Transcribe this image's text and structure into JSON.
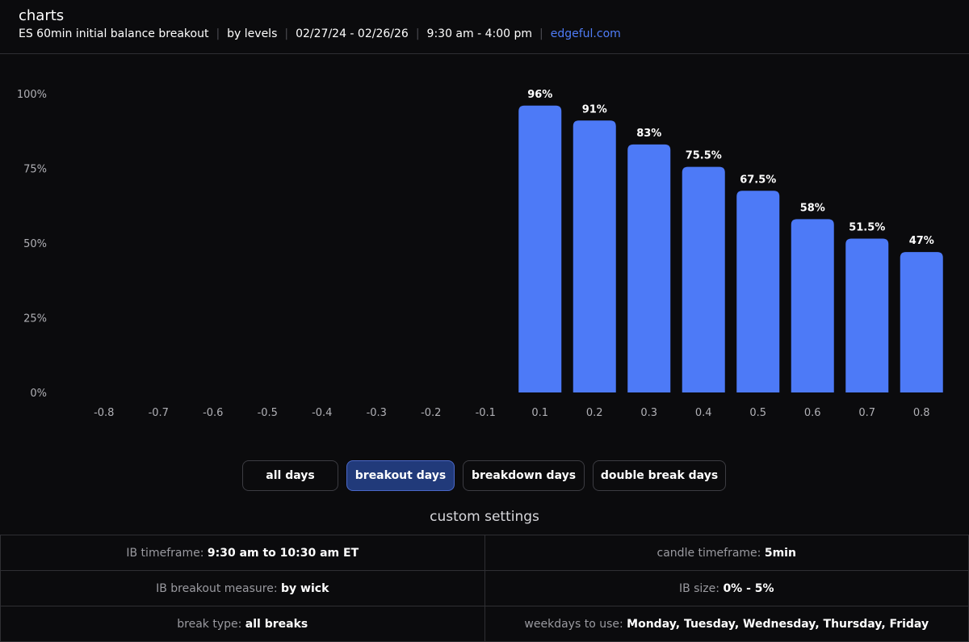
{
  "header": {
    "app_title": "charts",
    "subtitle": {
      "study": "ES 60min initial balance breakout",
      "mode": "by levels",
      "date_range": "02/27/24 - 02/26/26",
      "session": "9:30 am - 4:00 pm",
      "link": "edgeful.com"
    }
  },
  "chart_data": {
    "type": "bar",
    "categories": [
      "-0.8",
      "-0.7",
      "-0.6",
      "-0.5",
      "-0.4",
      "-0.3",
      "-0.2",
      "-0.1",
      "0.1",
      "0.2",
      "0.3",
      "0.4",
      "0.5",
      "0.6",
      "0.7",
      "0.8"
    ],
    "values": [
      null,
      null,
      null,
      null,
      null,
      null,
      null,
      null,
      96,
      91,
      83,
      75.5,
      67.5,
      58,
      51.5,
      47
    ],
    "data_labels": [
      "",
      "",
      "",
      "",
      "",
      "",
      "",
      "",
      "96%",
      "91%",
      "83%",
      "75.5%",
      "67.5%",
      "58%",
      "51.5%",
      "47%"
    ],
    "ylim": [
      0,
      100
    ],
    "yticks": [
      0,
      25,
      50,
      75,
      100
    ],
    "ytick_labels": [
      "0%",
      "25%",
      "50%",
      "75%",
      "100%"
    ],
    "bar_color": "#4d7af7",
    "title": "",
    "xlabel": "",
    "ylabel": "",
    "grid": false
  },
  "tabs": [
    {
      "label": "all days",
      "active": false
    },
    {
      "label": "breakout days",
      "active": true
    },
    {
      "label": "breakdown days",
      "active": false
    },
    {
      "label": "double break days",
      "active": false
    }
  ],
  "custom_settings": {
    "title": "custom settings",
    "rows": [
      [
        {
          "label": "IB timeframe:",
          "value": "9:30 am to 10:30 am ET"
        },
        {
          "label": "candle timeframe:",
          "value": "5min"
        }
      ],
      [
        {
          "label": "IB breakout measure:",
          "value": "by wick"
        },
        {
          "label": "IB size:",
          "value": "0% - 5%"
        }
      ],
      [
        {
          "label": "break type:",
          "value": "all breaks"
        },
        {
          "label": "weekdays to use:",
          "value": "Monday, Tuesday, Wednesday, Thursday, Friday"
        }
      ]
    ]
  },
  "colors": {
    "background": "#0b0b0d",
    "accent": "#4d7af7",
    "link": "#4f7cf7",
    "active_tab": "#213a7a"
  }
}
